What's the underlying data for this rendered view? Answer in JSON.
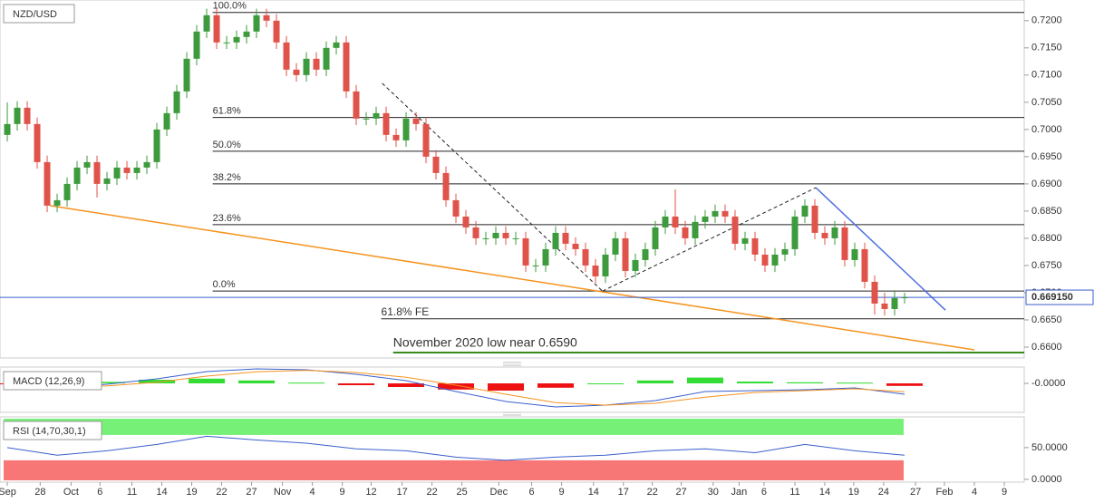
{
  "chart_data": {
    "type": "candlestick",
    "title": "NZD/USD",
    "colors": {
      "up": "#3d9b3d",
      "down": "#e0534a"
    },
    "candles": {
      "open": [
        0.699,
        0.701,
        0.704,
        0.701,
        0.694,
        0.686,
        0.687,
        0.69,
        0.693,
        0.694,
        0.69,
        0.691,
        0.693,
        0.692,
        0.693,
        0.694,
        0.7,
        0.703,
        0.707,
        0.713,
        0.718,
        0.721,
        0.716,
        0.716,
        0.717,
        0.718,
        0.721,
        0.72,
        0.716,
        0.711,
        0.71,
        0.713,
        0.711,
        0.715,
        0.716,
        0.707,
        0.702,
        0.702,
        0.703,
        0.699,
        0.698,
        0.702,
        0.701,
        0.695,
        0.692,
        0.687,
        0.684,
        0.682,
        0.68,
        0.68,
        0.681,
        0.68,
        0.68,
        0.675,
        0.675,
        0.678,
        0.681,
        0.679,
        0.678,
        0.675,
        0.673,
        0.677,
        0.68,
        0.674,
        0.676,
        0.678,
        0.682,
        0.684,
        0.682,
        0.68,
        0.683,
        0.684,
        0.685,
        0.684,
        0.679,
        0.68,
        0.677,
        0.675,
        0.677,
        0.678,
        0.684,
        0.686,
        0.681,
        0.68,
        0.682,
        0.676,
        0.678,
        0.672,
        0.668,
        0.667,
        0.669
      ],
      "high": [
        0.705,
        0.7052,
        0.7052,
        0.7022,
        0.6952,
        0.6882,
        0.6912,
        0.6942,
        0.6952,
        0.6952,
        0.6922,
        0.6942,
        0.6942,
        0.6942,
        0.6952,
        0.7012,
        0.7042,
        0.7082,
        0.7142,
        0.7192,
        0.7222,
        0.7222,
        0.7172,
        0.7182,
        0.7192,
        0.7222,
        0.7222,
        0.7212,
        0.7172,
        0.7122,
        0.7142,
        0.7142,
        0.7162,
        0.7172,
        0.7172,
        0.7082,
        0.7032,
        0.7042,
        0.7042,
        0.7002,
        0.7032,
        0.7032,
        0.7022,
        0.6962,
        0.6932,
        0.6882,
        0.6852,
        0.6832,
        0.6812,
        0.6822,
        0.6822,
        0.6812,
        0.6812,
        0.6762,
        0.6792,
        0.6822,
        0.6822,
        0.6802,
        0.6792,
        0.6762,
        0.6782,
        0.6812,
        0.6812,
        0.6772,
        0.6792,
        0.6832,
        0.6852,
        0.689,
        0.6832,
        0.6842,
        0.6852,
        0.6862,
        0.6862,
        0.6852,
        0.6812,
        0.6812,
        0.6782,
        0.6782,
        0.6792,
        0.6852,
        0.6872,
        0.6872,
        0.6822,
        0.6832,
        0.6832,
        0.6792,
        0.6792,
        0.6732,
        0.67,
        0.6702,
        0.67
      ],
      "low": [
        0.6978,
        0.6998,
        0.6998,
        0.6928,
        0.6848,
        0.6848,
        0.6858,
        0.6888,
        0.6918,
        0.6875,
        0.6888,
        0.6898,
        0.6908,
        0.6908,
        0.6918,
        0.6928,
        0.6988,
        0.7018,
        0.7058,
        0.7118,
        0.7168,
        0.7148,
        0.7148,
        0.7148,
        0.7158,
        0.7168,
        0.7188,
        0.7148,
        0.7098,
        0.7088,
        0.7088,
        0.7098,
        0.7098,
        0.7138,
        0.7058,
        0.7008,
        0.7008,
        0.7008,
        0.6978,
        0.6968,
        0.6968,
        0.6998,
        0.6938,
        0.6908,
        0.6858,
        0.6828,
        0.6808,
        0.6788,
        0.6788,
        0.6788,
        0.6788,
        0.6788,
        0.6738,
        0.6738,
        0.6738,
        0.6768,
        0.6778,
        0.6768,
        0.6738,
        0.6718,
        0.6718,
        0.6758,
        0.6728,
        0.6728,
        0.6748,
        0.6768,
        0.6808,
        0.6808,
        0.6788,
        0.6788,
        0.6818,
        0.6828,
        0.6828,
        0.6778,
        0.6778,
        0.6758,
        0.6738,
        0.6738,
        0.6758,
        0.6768,
        0.6828,
        0.6798,
        0.6788,
        0.6788,
        0.6748,
        0.6748,
        0.6708,
        0.666,
        0.6658,
        0.6658,
        0.668
      ],
      "close": [
        0.701,
        0.704,
        0.701,
        0.694,
        0.686,
        0.687,
        0.69,
        0.693,
        0.694,
        0.69,
        0.691,
        0.693,
        0.692,
        0.693,
        0.694,
        0.7,
        0.703,
        0.707,
        0.713,
        0.718,
        0.721,
        0.716,
        0.716,
        0.717,
        0.718,
        0.721,
        0.72,
        0.716,
        0.711,
        0.71,
        0.713,
        0.711,
        0.715,
        0.716,
        0.707,
        0.702,
        0.702,
        0.703,
        0.699,
        0.698,
        0.702,
        0.701,
        0.695,
        0.692,
        0.687,
        0.684,
        0.682,
        0.68,
        0.68,
        0.681,
        0.68,
        0.68,
        0.675,
        0.675,
        0.678,
        0.681,
        0.679,
        0.678,
        0.675,
        0.673,
        0.677,
        0.68,
        0.674,
        0.676,
        0.678,
        0.682,
        0.684,
        0.682,
        0.68,
        0.683,
        0.684,
        0.685,
        0.684,
        0.679,
        0.68,
        0.677,
        0.675,
        0.677,
        0.678,
        0.684,
        0.686,
        0.681,
        0.68,
        0.682,
        0.676,
        0.678,
        0.672,
        0.668,
        0.667,
        0.669,
        0.66915
      ]
    },
    "last_price": {
      "value": 0.66915,
      "label": "0.669150",
      "color": "#3a5fcd"
    },
    "xlim": [
      -0.73,
      102
    ],
    "ylim": [
      0.658,
      0.7238
    ],
    "yticks": [
      {
        "value": 0.72,
        "label": "0.7200"
      },
      {
        "value": 0.715,
        "label": "0.7150"
      },
      {
        "value": 0.71,
        "label": "0.7100"
      },
      {
        "value": 0.705,
        "label": "0.7050"
      },
      {
        "value": 0.7,
        "label": "0.7000"
      },
      {
        "value": 0.695,
        "label": "0.6950"
      },
      {
        "value": 0.69,
        "label": "0.6900"
      },
      {
        "value": 0.685,
        "label": "0.6850"
      },
      {
        "value": 0.68,
        "label": "0.6800"
      },
      {
        "value": 0.675,
        "label": "0.6750"
      },
      {
        "value": 0.67,
        "label": "0.6700"
      },
      {
        "value": 0.665,
        "label": "0.6650"
      },
      {
        "value": 0.66,
        "label": "0.6600"
      }
    ],
    "xticks": [
      {
        "value": 0,
        "label": "Sep"
      },
      {
        "value": 3.3,
        "label": "28"
      },
      {
        "value": 6.4,
        "label": "Oct"
      },
      {
        "value": 9.3,
        "label": "6"
      },
      {
        "value": 12.5,
        "label": "11"
      },
      {
        "value": 15.5,
        "label": "14"
      },
      {
        "value": 18.5,
        "label": "19"
      },
      {
        "value": 21.5,
        "label": "22"
      },
      {
        "value": 24.5,
        "label": "27"
      },
      {
        "value": 27.6,
        "label": "Nov"
      },
      {
        "value": 30.6,
        "label": "4"
      },
      {
        "value": 33.6,
        "label": "9"
      },
      {
        "value": 36.5,
        "label": "12"
      },
      {
        "value": 39.6,
        "label": "17"
      },
      {
        "value": 42.6,
        "label": "22"
      },
      {
        "value": 45.6,
        "label": "25"
      },
      {
        "value": 49.3,
        "label": "Dec"
      },
      {
        "value": 52.6,
        "label": "6"
      },
      {
        "value": 55.6,
        "label": "9"
      },
      {
        "value": 58.8,
        "label": "14"
      },
      {
        "value": 61.8,
        "label": "17"
      },
      {
        "value": 64.7,
        "label": "22"
      },
      {
        "value": 67.6,
        "label": "27"
      },
      {
        "value": 70.8,
        "label": "30"
      },
      {
        "value": 73.4,
        "label": "Jan"
      },
      {
        "value": 75.9,
        "label": "6"
      },
      {
        "value": 79,
        "label": "11"
      },
      {
        "value": 82,
        "label": "14"
      },
      {
        "value": 84.9,
        "label": "19"
      },
      {
        "value": 87.9,
        "label": "24"
      },
      {
        "value": 91.1,
        "label": "27"
      },
      {
        "value": 94,
        "label": "Feb"
      },
      {
        "value": 97,
        "label": "4"
      },
      {
        "value": 100,
        "label": "9"
      }
    ],
    "levels": [
      {
        "label": "100.0%",
        "value": 0.7215,
        "color": "#222",
        "label_x": 20.6
      },
      {
        "label": "61.8%",
        "value": 0.7022,
        "color": "#222",
        "label_x": 20.6
      },
      {
        "label": "50.0%",
        "value": 0.696,
        "color": "#222",
        "label_x": 20.6
      },
      {
        "label": "38.2%",
        "value": 0.69,
        "color": "#222",
        "label_x": 20.6
      },
      {
        "label": "23.6%",
        "value": 0.6825,
        "color": "#222",
        "label_x": 20.6
      },
      {
        "label": "0.0%",
        "value": 0.6703,
        "color": "#222",
        "label_x": 20.6
      },
      {
        "label": "61.8% FE",
        "value": 0.6652,
        "color": "#222",
        "label_x": 37.5
      },
      {
        "label": "November 2020 low near 0.6590",
        "value": 0.659,
        "color": "#3a8a1e",
        "label_x": 38.7
      }
    ],
    "trendlines": [
      {
        "x": [
          4.3,
          97
        ],
        "y": [
          0.686,
          0.6595
        ],
        "color": "#f5931f",
        "dash": false
      },
      {
        "x": [
          81.1,
          94.1
        ],
        "y": [
          0.6893,
          0.6668
        ],
        "color": "#4f6fe0",
        "dash": false
      },
      {
        "x": [
          37.6,
          59.7
        ],
        "y": [
          0.7085,
          0.6703
        ],
        "color": "#222",
        "dash": true
      },
      {
        "x": [
          59.7,
          81.1
        ],
        "y": [
          0.6703,
          0.6893
        ],
        "color": "#222",
        "dash": true
      }
    ],
    "macd": {
      "label": "MACD (12,26,9)",
      "ylim": [
        -0.008,
        0.0045
      ],
      "yticks": [
        {
          "value": 0,
          "label": "-0.0000"
        }
      ],
      "x": [
        0,
        5,
        10,
        15,
        20,
        25,
        30,
        35,
        40,
        45,
        50,
        55,
        60,
        65,
        70,
        75,
        80,
        85,
        90
      ],
      "series": [
        {
          "color": "#3a5fcd",
          "values": [
            -0.0005,
            -0.00125,
            -0.00025,
            0.00125,
            0.00325,
            0.004,
            0.00375,
            0.0025,
            0.00075,
            -0.00225,
            -0.005,
            -0.0065,
            -0.006,
            -0.00475,
            -0.00225,
            -0.002,
            -0.00175,
            -0.00125,
            -0.003
          ]
        },
        {
          "color": "#f5931f",
          "values": [
            -0.0003,
            -0.001,
            -0.0007,
            0.0003,
            0.002,
            0.0032,
            0.0036,
            0.003,
            0.0017,
            -0.0005,
            -0.003,
            -0.0053,
            -0.006,
            -0.0055,
            -0.0038,
            -0.0025,
            -0.002,
            -0.0015,
            -0.0023
          ]
        }
      ],
      "histogram": [
        -0.0002,
        -0.0003,
        0.0004,
        0.001,
        0.0013,
        0.0008,
        0.0002,
        -0.0005,
        -0.001,
        -0.0017,
        -0.002,
        -0.0012,
        0,
        0.0008,
        0.0016,
        0.0005,
        0.0003,
        0.0002,
        -0.0007
      ],
      "histogram_colors": {
        "up": "#33dd33",
        "down": "#ee1111"
      }
    },
    "rsi": {
      "label": "RSI (14,70,30,1)",
      "ylim": [
        -4.5,
        98.5
      ],
      "yticks": [
        {
          "value": 50,
          "label": "50.0000"
        },
        {
          "value": 0,
          "label": "0.0000"
        }
      ],
      "overbought": 70,
      "oversold": 30,
      "band_colors": {
        "overbought": "#77f077",
        "oversold": "#f77777"
      },
      "color": "#3a5fcd",
      "x": [
        0,
        5,
        10,
        15,
        20,
        25,
        30,
        35,
        40,
        45,
        50,
        55,
        60,
        65,
        70,
        75,
        80,
        85,
        90
      ],
      "values": [
        50,
        38,
        45,
        55,
        68,
        62,
        57,
        48,
        45,
        35,
        30,
        35,
        38,
        45,
        48,
        42,
        55,
        45,
        38
      ]
    }
  }
}
